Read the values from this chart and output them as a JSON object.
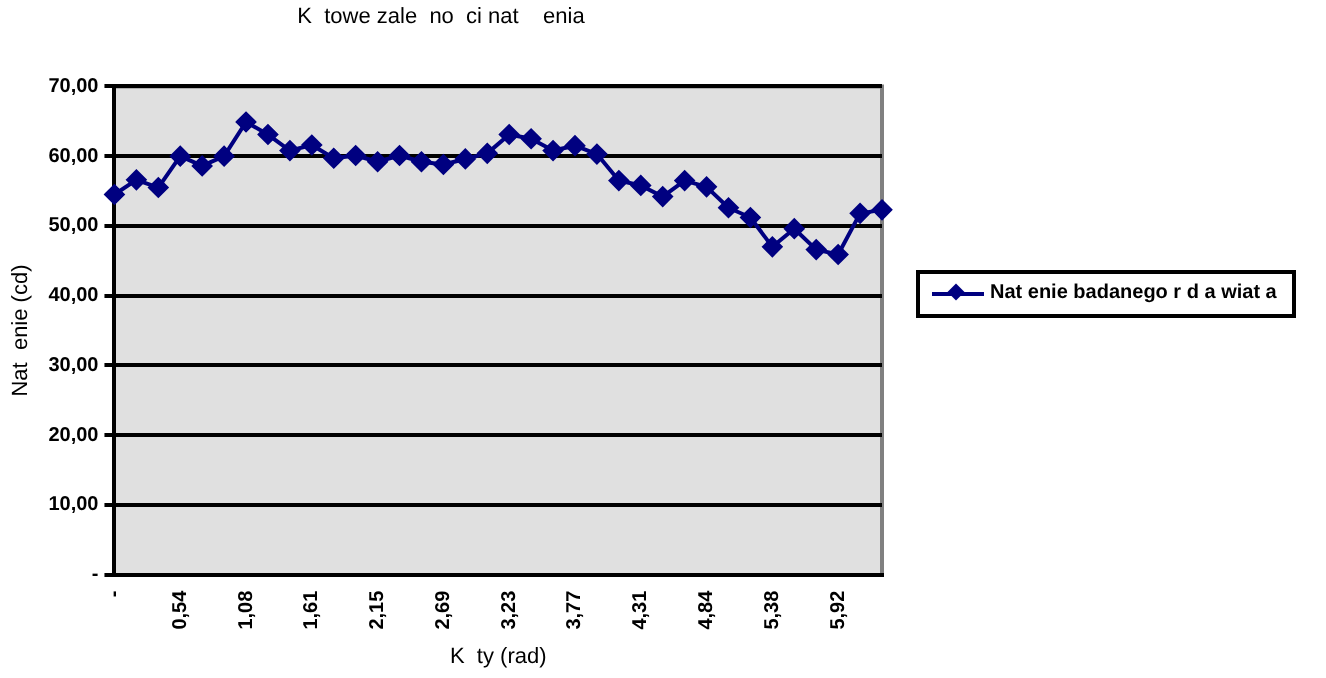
{
  "chart_data": {
    "type": "line",
    "title": "K  towe zale  no  ci nat    enia",
    "xlabel": "K  ty (rad)",
    "ylabel": "Nat  enie (cd)",
    "categories": [
      "-",
      null,
      null,
      "0,54",
      null,
      null,
      "1,08",
      null,
      null,
      "1,61",
      null,
      null,
      "2,15",
      null,
      null,
      "2,69",
      null,
      null,
      "3,23",
      null,
      null,
      "3,77",
      null,
      null,
      "4,31",
      null,
      null,
      "4,84",
      null,
      null,
      "5,38",
      null,
      null,
      "5,92",
      null,
      null
    ],
    "series": [
      {
        "name": "Nat  enie badanego  r d a  wiat a",
        "color": "#000080",
        "values": [
          54.5,
          56.6,
          55.5,
          60,
          58.6,
          60,
          64.9,
          63.1,
          60.8,
          61.6,
          59.7,
          60.1,
          59.2,
          60.1,
          59.2,
          58.8,
          59.6,
          60.4,
          63.1,
          62.5,
          60.8,
          61.5,
          60.3,
          56.5,
          55.8,
          54.2,
          56.5,
          55.6,
          52.6,
          51.2,
          47.0,
          49.6,
          46.6,
          45.9,
          51.8,
          52.3
        ]
      }
    ],
    "ylim": [
      0,
      70
    ],
    "yticks": [
      {
        "value": 0,
        "label": "-"
      },
      {
        "value": 10,
        "label": "10,00"
      },
      {
        "value": 20,
        "label": "20,00"
      },
      {
        "value": 30,
        "label": "30,00"
      },
      {
        "value": 40,
        "label": "40,00"
      },
      {
        "value": 50,
        "label": "50,00"
      },
      {
        "value": 60,
        "label": "60,00"
      },
      {
        "value": 70,
        "label": "70,00"
      }
    ],
    "grid": "y",
    "legend": "right",
    "marker": "diamond",
    "line_style": "solid"
  }
}
